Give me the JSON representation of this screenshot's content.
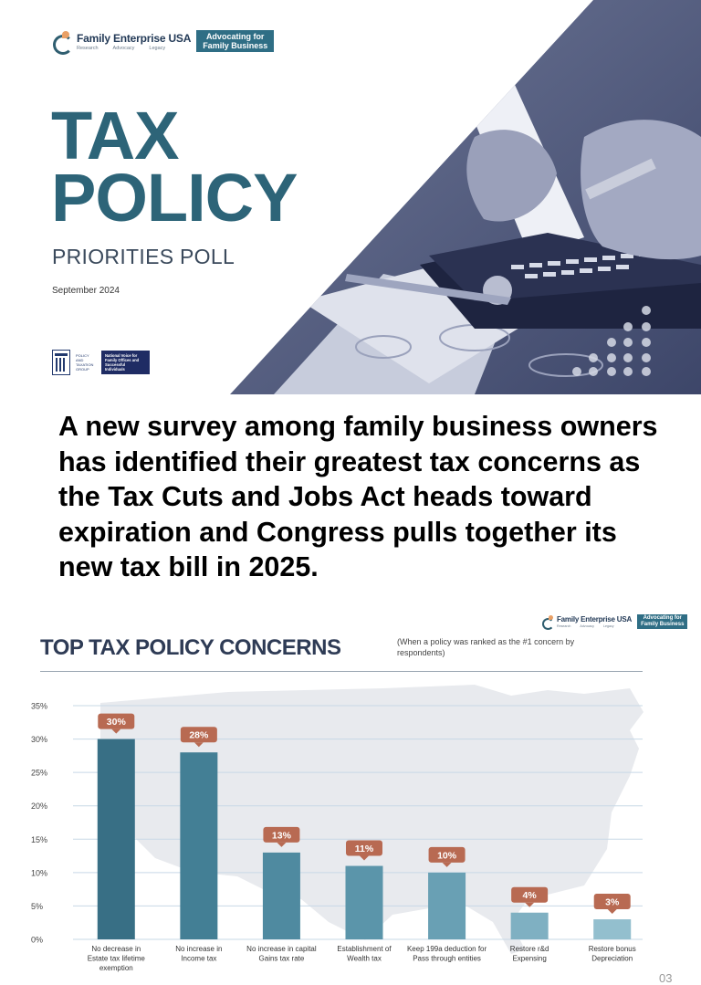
{
  "header": {
    "logo_name": "Family Enterprise USA",
    "logo_tagline": [
      "Research",
      "Advocacy",
      "Legacy"
    ],
    "badge_line1": "Advocating for",
    "badge_line2": "Family Business"
  },
  "cover": {
    "title_line1": "TAX",
    "title_line2": "POLICY",
    "subtitle": "PRIORITIES POLL",
    "date": "September 2024",
    "ppg_label": "POLICY AND TAXATION GROUP",
    "ppg_badge": "National Voice for Family Offices and Successful Individuals"
  },
  "lead_text": "A new survey among family business owners has identified their greatest tax concerns as the Tax Cuts and Jobs Act heads toward expiration and Congress pulls together its new tax bill in 2025.",
  "chart_section": {
    "title": "TOP TAX POLICY CONCERNS",
    "note": "(When a policy was ranked as the #1 concern by respondents)"
  },
  "chart_data": {
    "type": "bar",
    "title": "TOP TAX POLICY CONCERNS",
    "categories": [
      [
        "No decrease in",
        "Estate tax lifetime",
        "exemption"
      ],
      [
        "No increase in",
        "Income tax"
      ],
      [
        "No increase in capital",
        "Gains tax rate"
      ],
      [
        "Establishment of",
        "Wealth tax"
      ],
      [
        "Keep 199a deduction for",
        "Pass through entities"
      ],
      [
        "Restore r&d",
        "Expensing"
      ],
      [
        "Restore bonus",
        "Depreciation"
      ]
    ],
    "values": [
      30,
      28,
      13,
      11,
      10,
      4,
      3
    ],
    "value_labels": [
      "30%",
      "28%",
      "13%",
      "11%",
      "10%",
      "4%",
      "3%"
    ],
    "yticks": [
      "0%",
      "5%",
      "10%",
      "15%",
      "20%",
      "25%",
      "30%",
      "35%"
    ],
    "ylim": [
      0,
      35
    ],
    "grid": true,
    "colors": {
      "bars": [
        "#386f85",
        "#437f95",
        "#4f8aa0",
        "#5b95aa",
        "#69a0b4",
        "#7fb0c2",
        "#93bfce"
      ],
      "label_badge": "#b86a52",
      "grid": "#c7d8e6",
      "map": "#e6e8ec"
    }
  },
  "page_number": "03"
}
